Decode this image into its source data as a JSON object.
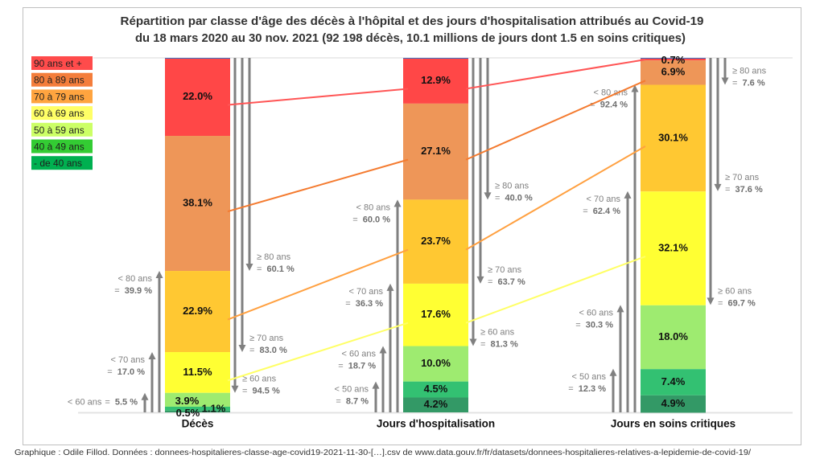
{
  "chart_data": {
    "type": "bar",
    "stacked": true,
    "normalized_to_100": true,
    "title": [
      "Répartition par classe d'âge des décès à l'hôpital et des jours d'hospitalisation attribués au Covid-19",
      "du 18 mars 2020 au 30 nov. 2021 (92 198 décès, 10.1 millions de jours dont 1.5 en soins critiques)"
    ],
    "xlabel": "",
    "ylabel": "",
    "ylim": [
      0,
      100
    ],
    "grid": false,
    "legend_position": "top-left",
    "categories": [
      "Décès",
      "Jours d'hospitalisation",
      "Jours en soins critiques"
    ],
    "series": [
      {
        "name": "90 ans et +",
        "values": [
          22.0,
          12.9,
          0.7
        ],
        "labels": [
          "22.0%",
          "12.9%",
          "0.7%"
        ],
        "color": "#FF4747",
        "legend_color": "#FF4B4B",
        "connector_color": "#FF5555"
      },
      {
        "name": "80 à 89 ans",
        "values": [
          38.1,
          27.1,
          6.9
        ],
        "labels": [
          "38.1%",
          "27.1%",
          "6.9%"
        ],
        "color": "#EE9658",
        "legend_color": "#F47D3B",
        "connector_color": "#F47B30"
      },
      {
        "name": "70 à 79 ans",
        "values": [
          22.9,
          23.7,
          30.1
        ],
        "labels": [
          "22.9%",
          "23.7%",
          "30.1%"
        ],
        "color": "#FFC832",
        "legend_color": "#FFA43F",
        "connector_color": "#FFA040"
      },
      {
        "name": "60 à 69 ans",
        "values": [
          11.5,
          17.6,
          32.1
        ],
        "labels": [
          "11.5%",
          "17.6%",
          "32.1%"
        ],
        "color": "#FFFF33",
        "legend_color": "#FFFF66",
        "connector_color": "#FFFF66"
      },
      {
        "name": "50 à 59 ans",
        "values": [
          3.9,
          10.0,
          18.0
        ],
        "labels": [
          "3.9%",
          "10.0%",
          "18.0%"
        ],
        "color": "#9EEB70",
        "legend_color": "#CCFF66"
      },
      {
        "name": "40 à 49 ans",
        "values": [
          1.1,
          4.5,
          7.4
        ],
        "labels": [
          "1.1%",
          "4.5%",
          "7.4%"
        ],
        "color": "#33C172",
        "legend_color": "#33CC33"
      },
      {
        "name": "- de 40 ans",
        "values": [
          0.5,
          4.2,
          4.9
        ],
        "labels": [
          "0.5%",
          "4.2%",
          "4.9%"
        ],
        "color": "#339966",
        "legend_color": "#00B050"
      }
    ],
    "connected_series": [
      0,
      1,
      2,
      3
    ],
    "annotation_equals": "= ",
    "annotation_color": "#808080",
    "cumulative_annotations": [
      {
        "category": 0,
        "from_top": [
          {
            "label": "≥ 80 ans",
            "value": 60.1,
            "value_text": "60.1 %"
          },
          {
            "label": "≥ 70 ans",
            "value": 83.0,
            "value_text": "83.0 %"
          },
          {
            "label": "≥ 60 ans",
            "value": 94.5,
            "value_text": "94.5 %"
          }
        ],
        "from_bottom": [
          {
            "label": "< 80 ans",
            "value": 39.9,
            "value_text": "39.9 %"
          },
          {
            "label": "< 70 ans",
            "value": 17.0,
            "value_text": "17.0 %"
          },
          {
            "label": "< 60 ans",
            "value": 5.5,
            "value_text": "5.5 %"
          }
        ]
      },
      {
        "category": 1,
        "from_top": [
          {
            "label": "≥ 80 ans",
            "value": 40.0,
            "value_text": "40.0 %"
          },
          {
            "label": "≥ 70 ans",
            "value": 63.7,
            "value_text": "63.7 %"
          },
          {
            "label": "≥ 60 ans",
            "value": 81.3,
            "value_text": "81.3 %"
          }
        ],
        "from_bottom": [
          {
            "label": "< 80 ans",
            "value": 60.0,
            "value_text": "60.0 %"
          },
          {
            "label": "< 70 ans",
            "value": 36.3,
            "value_text": "36.3 %"
          },
          {
            "label": "< 60 ans",
            "value": 18.7,
            "value_text": "18.7 %"
          },
          {
            "label": "< 50 ans",
            "value": 8.7,
            "value_text": "8.7 %"
          }
        ]
      },
      {
        "category": 2,
        "from_top": [
          {
            "label": "≥ 80 ans",
            "value": 7.6,
            "value_text": "7.6 %"
          },
          {
            "label": "≥ 70 ans",
            "value": 37.6,
            "value_text": "37.6 %"
          },
          {
            "label": "≥ 60 ans",
            "value": 69.7,
            "value_text": "69.7 %"
          }
        ],
        "from_bottom": [
          {
            "label": "< 80 ans",
            "value": 92.4,
            "value_text": "92.4 %"
          },
          {
            "label": "< 70 ans",
            "value": 62.4,
            "value_text": "62.4 %"
          },
          {
            "label": "< 60 ans",
            "value": 30.3,
            "value_text": "30.3 %"
          },
          {
            "label": "< 50 ans",
            "value": 12.3,
            "value_text": "12.3 %"
          }
        ]
      }
    ]
  },
  "footer": "Graphique : Odile Fillod. Données : donnees-hospitalieres-classe-age-covid19-2021-11-30-[…].csv de www.data.gouv.fr/fr/datasets/donnees-hospitalieres-relatives-a-lepidemie-de-covid-19/"
}
